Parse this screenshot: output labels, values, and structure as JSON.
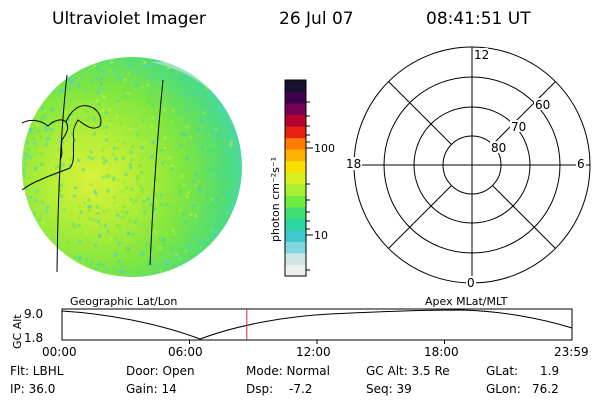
{
  "header": {
    "instrument": "Ultraviolet Imager",
    "date": "26 Jul 07",
    "time": "08:41:51 UT"
  },
  "colorbar": {
    "unit_label": "photon cm⁻²s⁻¹",
    "ticks": [
      "100",
      "10"
    ],
    "colors": [
      "#eeeeee",
      "#cfe6e6",
      "#7fd8e0",
      "#3fc8d0",
      "#2cd6a0",
      "#40e070",
      "#70ec40",
      "#a8f030",
      "#d8f020",
      "#f8e000",
      "#ffb000",
      "#ff7a00",
      "#e82010",
      "#b80030",
      "#780050",
      "#400050",
      "#1a1030"
    ]
  },
  "polar": {
    "labels_mlt": [
      "12",
      "18",
      "6",
      "0"
    ],
    "labels_lat": [
      "60",
      "70",
      "80"
    ]
  },
  "overlay_titles": {
    "left": "Geographic Lat/Lon",
    "right": "Apex MLat/MLT"
  },
  "timeline": {
    "ylabel": "GC Alt",
    "ymax": "9.0",
    "ymin": "1.8",
    "xticks": [
      "00:00",
      "06:00",
      "12:00",
      "18:00",
      "23:59"
    ],
    "marker_time_fraction": 0.3624
  },
  "info": {
    "flt": "Flt: LBHL",
    "ip": "IP: 36.0",
    "door": "Door: Open",
    "gain": "Gain: 14",
    "mode": "Mode: Normal",
    "dsp": "Dsp:",
    "dsp_val": "-7.2",
    "gcalt": "GC Alt: 3.5 Re",
    "seq": "Seq: 39",
    "glat": "GLat:",
    "glat_val": "1.9",
    "glon": "GLon:",
    "glon_val": "76.2"
  }
}
